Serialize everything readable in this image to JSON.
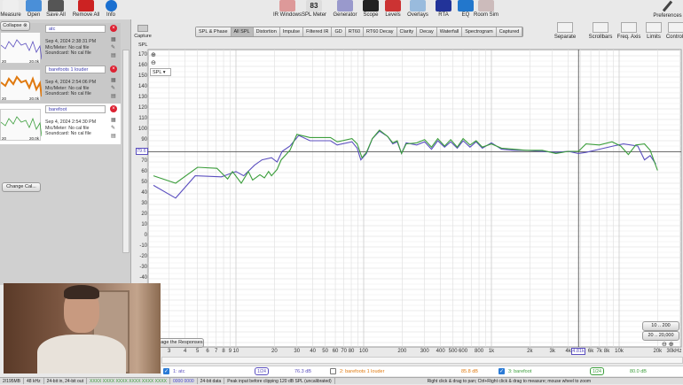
{
  "toolbar_left": [
    {
      "label": "Measure",
      "icon": "measure-icon"
    },
    {
      "label": "Open",
      "icon": "folder-icon"
    },
    {
      "label": "Save All",
      "icon": "save-icon"
    },
    {
      "label": "Remove All",
      "icon": "remove-icon"
    },
    {
      "label": "Info",
      "icon": "info-icon"
    }
  ],
  "toolbar_center": [
    {
      "label": "IR Windows",
      "icon": "ir-windows-icon"
    },
    {
      "label": "SPL Meter",
      "icon": "spl-meter-icon",
      "value": "83"
    },
    {
      "label": "Generator",
      "icon": "generator-icon"
    },
    {
      "label": "Scope",
      "icon": "scope-icon"
    },
    {
      "label": "Levels",
      "icon": "levels-icon"
    },
    {
      "label": "Overlays",
      "icon": "overlays-icon"
    },
    {
      "label": "RTA",
      "icon": "rta-icon"
    },
    {
      "label": "EQ",
      "icon": "eq-icon"
    },
    {
      "label": "Room Sim",
      "icon": "room-sim-icon"
    }
  ],
  "preferences": "Preferences",
  "collapse": "Collapse",
  "measurements": [
    {
      "index": "1",
      "name": "atc",
      "date": "Sep 4, 2024 2:38:31 PM",
      "mic": "Mic/Meter: No cal file",
      "soundcard": "Soundcard: No cal file",
      "color": "#5b4fbf"
    },
    {
      "index": "2",
      "name": "barefoots 1 louder",
      "date": "Sep 4, 2024 2:54:06 PM",
      "mic": "Mic/Meter: No cal file",
      "soundcard": "Soundcard: No cal file",
      "color": "#e07a10"
    },
    {
      "index": "3",
      "name": "barefoot",
      "date": "Sep 4, 2024 2:54:30 PM",
      "mic": "Mic/Meter: No cal file",
      "soundcard": "Soundcard: No cal file",
      "color": "#3c9e3c"
    }
  ],
  "thumb_axis": {
    "left": "20",
    "right": "20.0k"
  },
  "change_cal": "Change Cal...",
  "capture": "Capture",
  "tabs": [
    "SPL & Phase",
    "All SPL",
    "Distortion",
    "Impulse",
    "Filtered IR",
    "GD",
    "RT60",
    "RT60 Decay",
    "Clarity",
    "Decay",
    "Waterfall",
    "Spectrogram",
    "Captured"
  ],
  "active_tab": "All SPL",
  "right_tools": [
    "Separate",
    "Scrollbars",
    "Freq. Axis",
    "Limits",
    "Controls"
  ],
  "y_unit": "SPL",
  "y_select": "SPL",
  "cursor_y": "79.6",
  "cursor_x": "4.81k",
  "average_btn": "rage the Responses",
  "range_buttons": [
    "10 .. 200",
    "20 .. 20,000"
  ],
  "legend": [
    {
      "label": "1: atc",
      "checked": true,
      "smoothing": "1/24",
      "level": "76.3 dB",
      "color": "#5b4fbf"
    },
    {
      "label": "2: barefoots 1 louder",
      "checked": false,
      "level": "85.8 dB",
      "color": "#e07a10"
    },
    {
      "label": "3: barefoot",
      "checked": true,
      "smoothing": "1/24",
      "level": "80.0 dB",
      "color": "#3c9e3c"
    }
  ],
  "status": [
    "2/195MB",
    "48 kHz",
    "24-bit in, 24-bit out",
    "XXXX XXXX  XXXX XXXX  XXXX XXXX",
    "0000 0000",
    "24-bit data",
    "Peak input before clipping 120 dB SPL (uncalibrated)",
    "Right click & drag to pan; Ctrl+Right click & drag to measure; mouse wheel to zoom"
  ],
  "chart_data": {
    "type": "line",
    "xscale": "log",
    "xlim": [
      2,
      30000
    ],
    "ylim": [
      -105,
      175
    ],
    "ylabel": "SPL",
    "x_ticks": [
      "3",
      "4",
      "5",
      "6",
      "7",
      "8",
      "9",
      "10",
      "20",
      "30",
      "40",
      "50",
      "60",
      "70",
      "80",
      "100",
      "200",
      "300",
      "400",
      "500",
      "600",
      "800",
      "1k",
      "2k",
      "3k",
      "4k",
      "6k",
      "7k",
      "8k",
      "10k",
      "20k",
      "30kHz"
    ],
    "x_tick_values": [
      3,
      4,
      5,
      6,
      7,
      8,
      9,
      10,
      20,
      30,
      40,
      50,
      60,
      70,
      80,
      100,
      200,
      300,
      400,
      500,
      600,
      800,
      1000,
      2000,
      3000,
      4000,
      6000,
      7000,
      8000,
      10000,
      20000,
      30000
    ],
    "y_ticks": [
      170,
      160,
      150,
      140,
      130,
      120,
      110,
      100,
      90,
      70,
      60,
      50,
      40,
      30,
      20,
      10,
      0,
      -10,
      -20,
      -30,
      -40
    ],
    "grid": true,
    "series": [
      {
        "name": "1: atc",
        "color": "#5b4fbf",
        "points": [
          [
            2.26,
            48
          ],
          [
            3.37,
            36
          ],
          [
            4.8,
            57
          ],
          [
            7.7,
            56
          ],
          [
            9.5,
            60
          ],
          [
            10,
            61
          ],
          [
            11.5,
            57
          ],
          [
            14,
            67
          ],
          [
            16,
            72
          ],
          [
            19,
            74
          ],
          [
            21,
            70
          ],
          [
            23,
            80
          ],
          [
            26.5,
            85
          ],
          [
            31,
            95
          ],
          [
            38,
            90
          ],
          [
            55,
            90
          ],
          [
            62,
            86
          ],
          [
            81,
            89
          ],
          [
            89,
            83
          ],
          [
            95,
            72
          ],
          [
            105,
            78
          ],
          [
            117,
            92
          ],
          [
            133,
            99
          ],
          [
            154,
            94
          ],
          [
            169,
            87
          ],
          [
            183,
            89
          ],
          [
            198,
            78
          ],
          [
            215,
            88
          ],
          [
            260,
            86
          ],
          [
            300,
            89
          ],
          [
            340,
            82
          ],
          [
            380,
            90
          ],
          [
            430,
            84
          ],
          [
            480,
            89
          ],
          [
            540,
            83
          ],
          [
            600,
            90
          ],
          [
            680,
            84
          ],
          [
            760,
            89
          ],
          [
            850,
            83
          ],
          [
            1000,
            88
          ],
          [
            1200,
            82
          ],
          [
            1500,
            81
          ],
          [
            1860,
            81
          ],
          [
            2500,
            80
          ],
          [
            3200,
            79
          ],
          [
            4000,
            80
          ],
          [
            4800,
            78
          ],
          [
            5500,
            79
          ],
          [
            7000,
            82
          ],
          [
            9000,
            85
          ],
          [
            10800,
            87
          ],
          [
            14000,
            85
          ],
          [
            15800,
            72
          ],
          [
            17500,
            76
          ],
          [
            19400,
            68
          ]
        ]
      },
      {
        "name": "3: barefoot",
        "color": "#3c9e3c",
        "points": [
          [
            2.26,
            57
          ],
          [
            3.37,
            50
          ],
          [
            5,
            65
          ],
          [
            7.1,
            64
          ],
          [
            8.6,
            54
          ],
          [
            9.4,
            61
          ],
          [
            11,
            50
          ],
          [
            12.5,
            61
          ],
          [
            13.5,
            53
          ],
          [
            15.4,
            58
          ],
          [
            16.7,
            55
          ],
          [
            18,
            61
          ],
          [
            19,
            57
          ],
          [
            21,
            63
          ],
          [
            22.6,
            72
          ],
          [
            26.5,
            81
          ],
          [
            30,
            96
          ],
          [
            38,
            93
          ],
          [
            55,
            93
          ],
          [
            62,
            89
          ],
          [
            81,
            92
          ],
          [
            89,
            87
          ],
          [
            97,
            74
          ],
          [
            105,
            79
          ],
          [
            117,
            92
          ],
          [
            133,
            100
          ],
          [
            154,
            94
          ],
          [
            169,
            88
          ],
          [
            183,
            90
          ],
          [
            198,
            78
          ],
          [
            215,
            87
          ],
          [
            260,
            88
          ],
          [
            300,
            91
          ],
          [
            340,
            84
          ],
          [
            380,
            92
          ],
          [
            430,
            85
          ],
          [
            480,
            91
          ],
          [
            540,
            84
          ],
          [
            600,
            92
          ],
          [
            680,
            86
          ],
          [
            760,
            90
          ],
          [
            850,
            84
          ],
          [
            1000,
            87
          ],
          [
            1200,
            83
          ],
          [
            1500,
            82
          ],
          [
            1860,
            81
          ],
          [
            2500,
            81
          ],
          [
            3200,
            78
          ],
          [
            4000,
            80
          ],
          [
            4800,
            80
          ],
          [
            5500,
            87
          ],
          [
            7000,
            86
          ],
          [
            8800,
            89
          ],
          [
            10300,
            85
          ],
          [
            11800,
            77
          ],
          [
            13500,
            86
          ],
          [
            15800,
            87
          ],
          [
            17500,
            81
          ],
          [
            20000,
            62
          ]
        ]
      }
    ]
  }
}
